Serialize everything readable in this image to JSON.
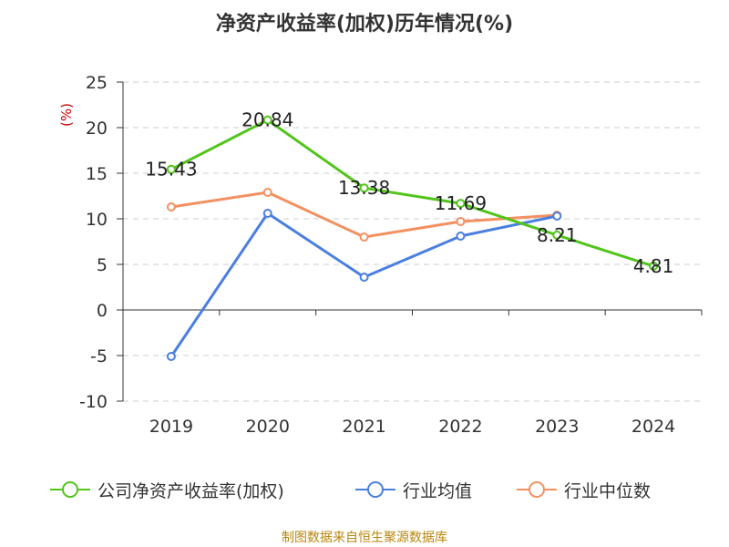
{
  "chart_data": {
    "type": "line",
    "title": "净资产收益率(加权)历年情况(%)",
    "ylabel": "(%)",
    "categories": [
      "2019",
      "2020",
      "2021",
      "2022",
      "2023",
      "2024"
    ],
    "ylim": [
      -10,
      25
    ],
    "yticks": [
      25,
      20,
      15,
      10,
      5,
      0,
      -5,
      -10
    ],
    "grid": true,
    "legend_position": "bottom",
    "series": [
      {
        "name": "公司净资产收益率(加权)",
        "color": "#52c41a",
        "values": [
          15.43,
          20.84,
          13.38,
          11.69,
          8.21,
          4.81
        ],
        "labels": [
          "15.43",
          "20.84",
          "13.38",
          "11.69",
          "8.21",
          "4.81"
        ]
      },
      {
        "name": "行业均值",
        "color": "#4a7fe0",
        "values": [
          -5.1,
          10.6,
          3.6,
          8.1,
          10.3,
          null
        ]
      },
      {
        "name": "行业中位数",
        "color": "#f39060",
        "values": [
          11.3,
          12.9,
          8.0,
          9.7,
          10.4,
          null
        ]
      }
    ]
  },
  "source": "制图数据来自恒生聚源数据库"
}
